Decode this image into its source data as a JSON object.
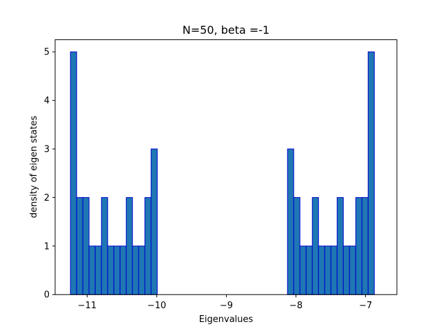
{
  "chart_data": {
    "type": "bar",
    "title": "N=50, beta =-1",
    "xlabel": "Eigenvalues",
    "ylabel": "density of eigen states",
    "xlim": [
      -11.46,
      -6.55
    ],
    "ylim": [
      0,
      5.25
    ],
    "xticks": [
      {
        "value": -11,
        "label": "−11"
      },
      {
        "value": -10,
        "label": "−10"
      },
      {
        "value": -9,
        "label": "−9"
      },
      {
        "value": -8,
        "label": "−8"
      },
      {
        "value": -7,
        "label": "−7"
      }
    ],
    "yticks": [
      0,
      1,
      2,
      3,
      4,
      5
    ],
    "bin_start": -11.24,
    "bin_width": 0.0891,
    "values": [
      5,
      2,
      2,
      1,
      1,
      2,
      1,
      1,
      1,
      2,
      1,
      1,
      2,
      3,
      0,
      0,
      0,
      0,
      0,
      0,
      0,
      0,
      0,
      0,
      0,
      0,
      0,
      0,
      0,
      0,
      0,
      0,
      0,
      0,
      0,
      3,
      2,
      1,
      1,
      2,
      1,
      1,
      1,
      2,
      1,
      1,
      2,
      2,
      5
    ],
    "bar_fill": "#1f77b4",
    "bar_edge": "#0000cd",
    "grid": false
  }
}
